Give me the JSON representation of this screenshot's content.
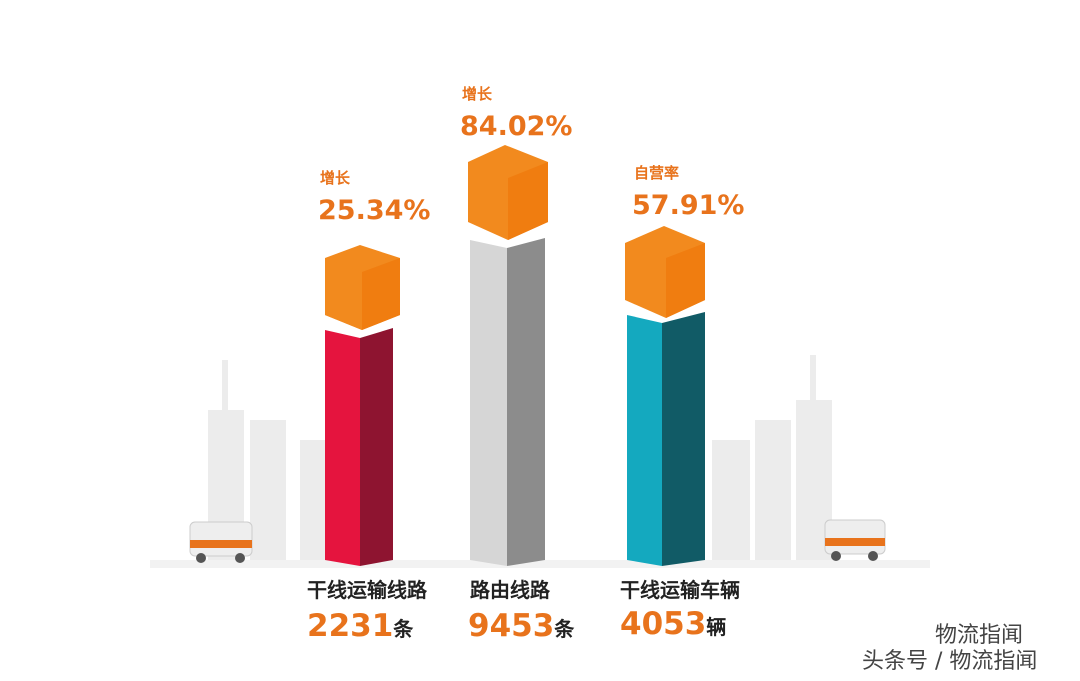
{
  "items": [
    {
      "note_label": "增长",
      "note_value": "25.34%",
      "label": "干线运输线路",
      "value": "2231",
      "unit": "条"
    },
    {
      "note_label": "增长",
      "note_value": "84.02%",
      "label": "路由线路",
      "value": "9453",
      "unit": "条"
    },
    {
      "note_label": "自营率",
      "note_value": "57.91%",
      "label": "干线运输车辆",
      "value": "4053",
      "unit": "辆"
    }
  ],
  "watermark": {
    "line1": "物流指闻",
    "line2": "头条号 / 物流指闻"
  }
}
